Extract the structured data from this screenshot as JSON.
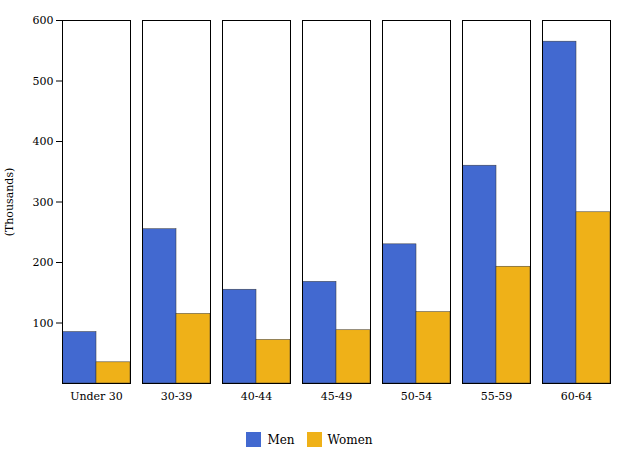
{
  "chart_data": {
    "type": "bar",
    "categories": [
      "Under 30",
      "30-39",
      "40-44",
      "45-49",
      "50-54",
      "55-59",
      "60-64"
    ],
    "series": [
      {
        "name": "Men",
        "values": [
          85,
          255,
          155,
          168,
          230,
          360,
          565
        ]
      },
      {
        "name": "Women",
        "values": [
          35,
          115,
          72,
          88,
          118,
          193,
          283
        ]
      }
    ],
    "ylabel": "(Thousands)",
    "ylim": [
      0,
      600
    ],
    "yticks": [
      100,
      200,
      300,
      400,
      500,
      600
    ],
    "grid": false,
    "legend": "bottom"
  }
}
